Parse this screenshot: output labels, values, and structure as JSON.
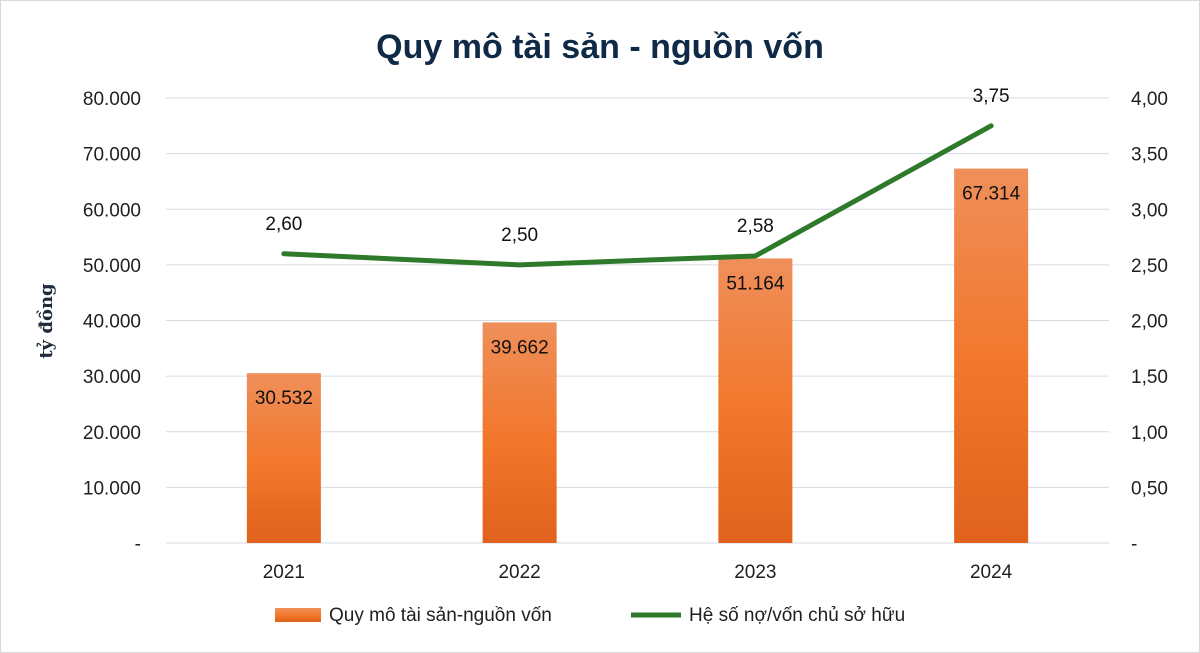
{
  "chart_data": {
    "type": "bar",
    "title": "Quy mô tài sản - nguồn vốn",
    "ylabel": "tỷ đồng",
    "categories": [
      "2021",
      "2022",
      "2023",
      "2024"
    ],
    "ylim": [
      0,
      80000
    ],
    "y2lim": [
      0,
      4.0
    ],
    "y_ticks": [
      "-",
      "10.000",
      "20.000",
      "30.000",
      "40.000",
      "50.000",
      "60.000",
      "70.000",
      "80.000"
    ],
    "y2_ticks": [
      "-",
      "0,50",
      "1,00",
      "1,50",
      "2,00",
      "2,50",
      "3,00",
      "3,50",
      "4,00"
    ],
    "grid": true,
    "legend_position": "bottom",
    "series": [
      {
        "name": "Quy mô tài sản-nguồn vốn",
        "type": "bar",
        "axis": "left",
        "values": [
          30532,
          39662,
          51164,
          67314
        ],
        "labels": [
          "30.532",
          "39.662",
          "51.164",
          "67.314"
        ],
        "color": "#f07a3a"
      },
      {
        "name": "Hệ số nợ/vốn chủ sở hữu",
        "type": "line",
        "axis": "right",
        "values": [
          2.6,
          2.5,
          2.58,
          3.75
        ],
        "labels": [
          "2,60",
          "2,50",
          "2,58",
          "3,75"
        ],
        "color": "#2e7a2a"
      }
    ]
  }
}
